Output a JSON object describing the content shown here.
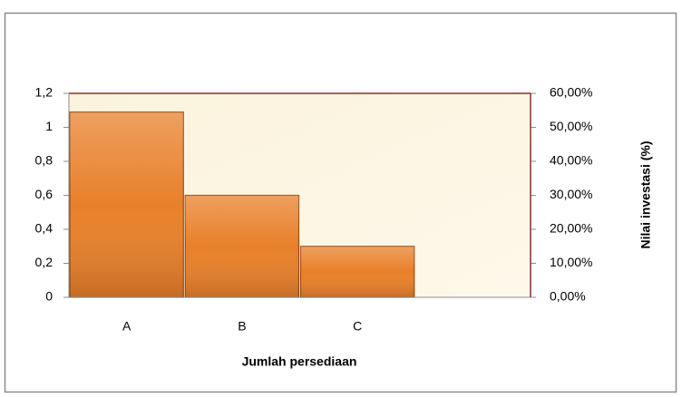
{
  "chart_data": {
    "type": "bar",
    "x_label": "Jumlah persediaan",
    "y2_label": "Nilai  investasi (%)",
    "categories": [
      "A",
      "B",
      "C",
      null
    ],
    "values": [
      1.09,
      0.6,
      0.3,
      null
    ],
    "color": "#e8802a",
    "ylim": [
      0,
      1.2
    ],
    "yticks": [
      0,
      {
        "value": 0.2,
        "label": "0,2"
      },
      {
        "value": 0.4,
        "label": "0,4"
      },
      {
        "value": 0.6,
        "label": "0,6"
      },
      {
        "value": 0.8,
        "label": "0,8"
      },
      1,
      {
        "value": 1.2,
        "label": "1,2"
      }
    ],
    "y2lim": [
      0,
      60
    ],
    "y2ticks": [
      {
        "value": 0,
        "label": "0,00%"
      },
      {
        "value": 10,
        "label": "10,00%"
      },
      {
        "value": 20,
        "label": "20,00%"
      },
      {
        "value": 30,
        "label": "30,00%"
      },
      {
        "value": 40,
        "label": "40,00%"
      },
      {
        "value": 50,
        "label": "50,00%"
      },
      {
        "value": 60,
        "label": "60,00%"
      }
    ],
    "grid": false
  }
}
